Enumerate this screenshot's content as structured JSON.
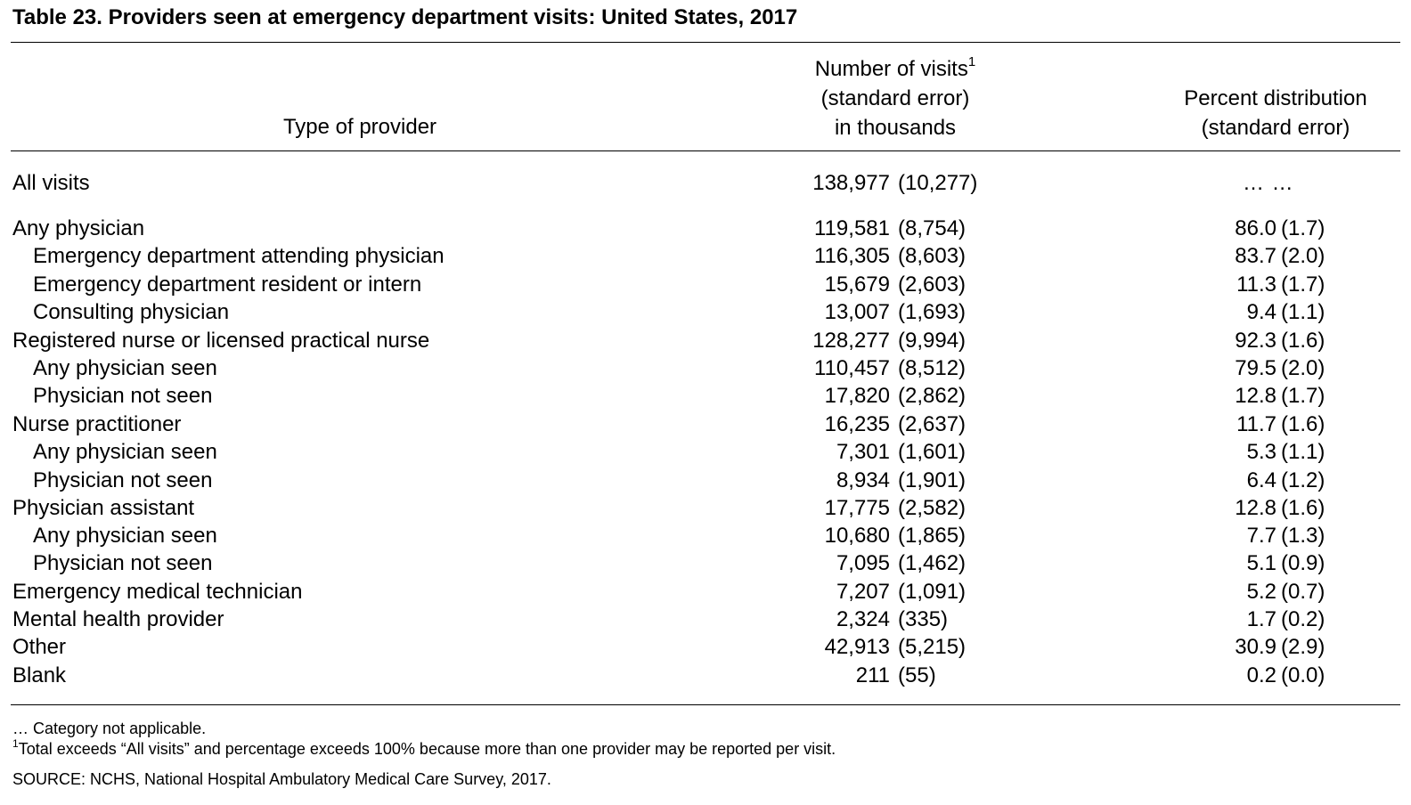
{
  "title": "Table 23. Providers seen at emergency department visits: United States, 2017",
  "columns": {
    "provider": "Type of provider",
    "visits": {
      "line1": "Number of visits",
      "footnote_mark": "1",
      "line2": "(standard error)",
      "line3": "in thousands"
    },
    "percent": {
      "line1": "Percent distribution",
      "line2": "(standard error)"
    }
  },
  "rows": [
    {
      "label": "All visits",
      "visits": "138,977",
      "visits_se": "(10,277)",
      "percent_na": "… …"
    },
    {
      "label": "Any physician",
      "visits": "119,581",
      "visits_se": "(8,754)",
      "percent": "86.0",
      "percent_se": "(1.7)"
    },
    {
      "label": "Emergency department attending physician",
      "visits": "116,305",
      "visits_se": "(8,603)",
      "percent": "83.7",
      "percent_se": "(2.0)"
    },
    {
      "label": "Emergency department resident or intern",
      "visits": "15,679",
      "visits_se": "(2,603)",
      "percent": "11.3",
      "percent_se": "(1.7)"
    },
    {
      "label": "Consulting physician",
      "visits": "13,007",
      "visits_se": "(1,693)",
      "percent": "9.4",
      "percent_se": "(1.1)"
    },
    {
      "label": "Registered nurse or licensed practical nurse",
      "visits": "128,277",
      "visits_se": "(9,994)",
      "percent": "92.3",
      "percent_se": "(1.6)"
    },
    {
      "label": "Any physician seen",
      "visits": "110,457",
      "visits_se": "(8,512)",
      "percent": "79.5",
      "percent_se": "(2.0)"
    },
    {
      "label": "Physician not seen",
      "visits": "17,820",
      "visits_se": "(2,862)",
      "percent": "12.8",
      "percent_se": "(1.7)"
    },
    {
      "label": "Nurse practitioner",
      "visits": "16,235",
      "visits_se": "(2,637)",
      "percent": "11.7",
      "percent_se": "(1.6)"
    },
    {
      "label": "Any physician seen",
      "visits": "7,301",
      "visits_se": "(1,601)",
      "percent": "5.3",
      "percent_se": "(1.1)"
    },
    {
      "label": "Physician not seen",
      "visits": "8,934",
      "visits_se": "(1,901)",
      "percent": "6.4",
      "percent_se": "(1.2)"
    },
    {
      "label": "Physician assistant",
      "visits": "17,775",
      "visits_se": "(2,582)",
      "percent": "12.8",
      "percent_se": "(1.6)"
    },
    {
      "label": "Any physician seen",
      "visits": "10,680",
      "visits_se": "(1,865)",
      "percent": "7.7",
      "percent_se": "(1.3)"
    },
    {
      "label": "Physician not seen",
      "visits": "7,095",
      "visits_se": "(1,462)",
      "percent": "5.1",
      "percent_se": "(0.9)"
    },
    {
      "label": "Emergency medical technician",
      "visits": "7,207",
      "visits_se": "(1,091)",
      "percent": "5.2",
      "percent_se": "(0.7)"
    },
    {
      "label": "Mental health provider",
      "visits": "2,324",
      "visits_se": "(335)",
      "percent": "1.7",
      "percent_se": "(0.2)"
    },
    {
      "label": "Other",
      "visits": "42,913",
      "visits_se": "(5,215)",
      "percent": "30.9",
      "percent_se": "(2.9)"
    },
    {
      "label": "Blank",
      "visits": "211",
      "visits_se": "(55)",
      "percent": "0.2",
      "percent_se": "(0.0)"
    }
  ],
  "footnotes": {
    "not_applicable": "… Category not applicable.",
    "note1_mark": "1",
    "note1": "Total exceeds “All visits” and percentage exceeds 100% because more than one provider may be reported per visit.",
    "source": "SOURCE: NCHS, National Hospital Ambulatory Medical Care Survey, 2017."
  }
}
